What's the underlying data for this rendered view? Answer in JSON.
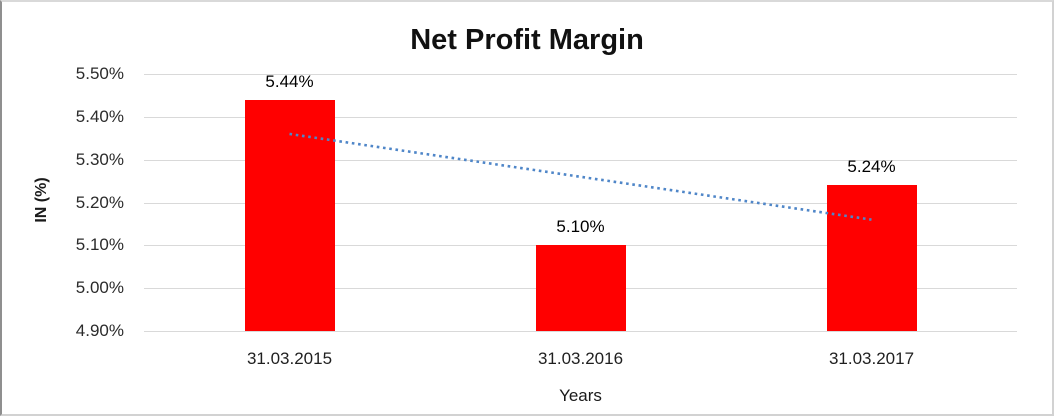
{
  "chart_data": {
    "type": "bar",
    "title": "Net Profit Margin",
    "categories": [
      "31.03.2015",
      "31.03.2016",
      "31.03.2017"
    ],
    "values": [
      5.44,
      5.1,
      5.24
    ],
    "value_labels": [
      "5.44%",
      "5.10%",
      "5.24%"
    ],
    "xlabel": "Years",
    "ylabel": "IN (%)",
    "ylim": [
      4.9,
      5.5
    ],
    "ytick_labels": [
      "5.50%",
      "5.40%",
      "5.30%",
      "5.20%",
      "5.10%",
      "5.00%",
      "4.90%"
    ],
    "ytick_values": [
      5.5,
      5.4,
      5.3,
      5.2,
      5.1,
      5.0,
      4.9
    ],
    "grid": true,
    "legend": "none",
    "bar_color": "#ff0000",
    "gridline_color": "#d9d9d9",
    "trendline": {
      "type": "linear",
      "style": "dotted",
      "color": "#4f86c8",
      "start_value": 5.36,
      "end_value": 5.16
    }
  }
}
